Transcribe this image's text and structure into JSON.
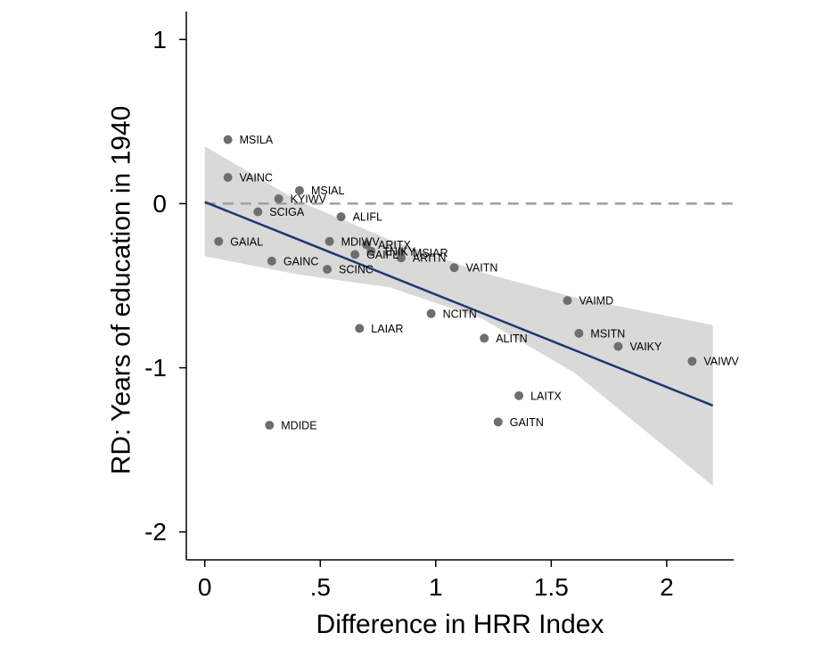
{
  "chart_data": {
    "type": "scatter",
    "xlabel": "Difference in HRR Index",
    "ylabel": "RD: Years of education in 1940",
    "xlim": [
      -0.08,
      2.29
    ],
    "ylim": [
      -2.17,
      1.17
    ],
    "x_ticks": [
      0,
      0.5,
      1,
      1.5,
      2
    ],
    "x_tick_labels": [
      "0",
      ".5",
      "1",
      "1.5",
      "2"
    ],
    "y_ticks": [
      1,
      0,
      -1,
      -2
    ],
    "y_tick_labels": [
      "1",
      "0",
      "-1",
      "-2"
    ],
    "reference_line": {
      "y": 0,
      "style": "dashed",
      "color": "#9e9e9e"
    },
    "fit_line": {
      "x": [
        0,
        2.2
      ],
      "y": [
        0.01,
        -1.23
      ],
      "color": "#1a3a6b"
    },
    "confidence_band": {
      "x": [
        0,
        0.4,
        0.8,
        1.2,
        1.6,
        2.2
      ],
      "upper": [
        0.35,
        0.02,
        -0.22,
        -0.42,
        -0.57,
        -0.74
      ],
      "lower": [
        -0.32,
        -0.43,
        -0.51,
        -0.7,
        -1.03,
        -1.72
      ],
      "color": "#d9d9d9"
    },
    "point_color": "#6e6e6e",
    "points": [
      {
        "label": "MSILA",
        "x": 0.1,
        "y": 0.39
      },
      {
        "label": "VAINC",
        "x": 0.1,
        "y": 0.16
      },
      {
        "label": "MSIAL",
        "x": 0.41,
        "y": 0.08
      },
      {
        "label": "KYIWV",
        "x": 0.32,
        "y": 0.03
      },
      {
        "label": "SCIGA",
        "x": 0.23,
        "y": -0.05
      },
      {
        "label": "ALIFL",
        "x": 0.59,
        "y": -0.08
      },
      {
        "label": "GAIAL",
        "x": 0.06,
        "y": -0.23
      },
      {
        "label": "MDIWV",
        "x": 0.54,
        "y": -0.23
      },
      {
        "label": "ARITX",
        "x": 0.7,
        "y": -0.25
      },
      {
        "label": "TNIKY",
        "x": 0.72,
        "y": -0.29
      },
      {
        "label": "GAIFL",
        "x": 0.65,
        "y": -0.31
      },
      {
        "label": "MSIAR",
        "x": 0.85,
        "y": -0.3
      },
      {
        "label": "ARITN",
        "x": 0.85,
        "y": -0.33
      },
      {
        "label": "GAINC",
        "x": 0.29,
        "y": -0.35
      },
      {
        "label": "VAITN",
        "x": 1.08,
        "y": -0.39
      },
      {
        "label": "SCINC",
        "x": 0.53,
        "y": -0.4
      },
      {
        "label": "VAIMD",
        "x": 1.57,
        "y": -0.59
      },
      {
        "label": "NCITN",
        "x": 0.98,
        "y": -0.67
      },
      {
        "label": "LAIAR",
        "x": 0.67,
        "y": -0.76
      },
      {
        "label": "MSITN",
        "x": 1.62,
        "y": -0.79
      },
      {
        "label": "ALITN",
        "x": 1.21,
        "y": -0.82
      },
      {
        "label": "VAIKY",
        "x": 1.79,
        "y": -0.87
      },
      {
        "label": "VAIWV",
        "x": 2.11,
        "y": -0.96
      },
      {
        "label": "LAITX",
        "x": 1.36,
        "y": -1.17
      },
      {
        "label": "MDIDE",
        "x": 0.28,
        "y": -1.35
      },
      {
        "label": "GAITN",
        "x": 1.27,
        "y": -1.33
      }
    ]
  }
}
